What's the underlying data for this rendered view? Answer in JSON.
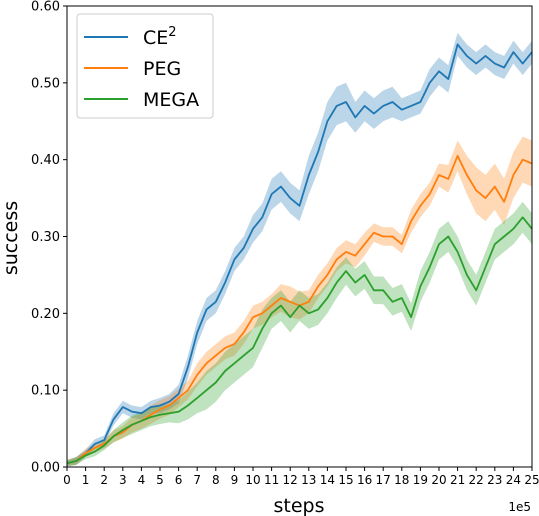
{
  "chart_data": {
    "type": "line",
    "title": "",
    "xlabel": "steps",
    "ylabel": "success",
    "x_offset_label": "1e5",
    "xlim": [
      0,
      25
    ],
    "ylim": [
      0,
      0.6
    ],
    "xticks": [
      0,
      1,
      2,
      3,
      4,
      5,
      6,
      7,
      8,
      9,
      10,
      11,
      12,
      13,
      14,
      15,
      16,
      17,
      18,
      19,
      20,
      21,
      22,
      23,
      24,
      25
    ],
    "xtick_labels": [
      "0",
      "1",
      "2",
      "3",
      "4",
      "5",
      "6",
      "7",
      "8",
      "9",
      "10",
      "11",
      "12",
      "13",
      "14",
      "15",
      "16",
      "17",
      "18",
      "19",
      "20",
      "21",
      "22",
      "23",
      "24",
      "25"
    ],
    "yticks": [
      0,
      0.1,
      0.2,
      0.3,
      0.4,
      0.5,
      0.6
    ],
    "ytick_labels": [
      "0.00",
      "0.10",
      "0.20",
      "0.30",
      "0.40",
      "0.50",
      "0.60"
    ],
    "grid": false,
    "legend_position": "top-left",
    "x": [
      0,
      0.5,
      1,
      1.5,
      2,
      2.5,
      3,
      3.5,
      4,
      4.5,
      5,
      5.5,
      6,
      6.5,
      7,
      7.5,
      8,
      8.5,
      9,
      9.5,
      10,
      10.5,
      11,
      11.5,
      12,
      12.5,
      13,
      13.5,
      14,
      14.5,
      15,
      15.5,
      16,
      16.5,
      17,
      17.5,
      18,
      18.5,
      19,
      19.5,
      20,
      20.5,
      21,
      21.5,
      22,
      22.5,
      23,
      23.5,
      24,
      24.5,
      25
    ],
    "series": [
      {
        "name": "CE",
        "name_superscript": "2",
        "color": "#1f77b4",
        "values": [
          0.005,
          0.008,
          0.018,
          0.03,
          0.035,
          0.062,
          0.078,
          0.072,
          0.07,
          0.078,
          0.08,
          0.085,
          0.095,
          0.13,
          0.175,
          0.205,
          0.215,
          0.24,
          0.27,
          0.285,
          0.31,
          0.325,
          0.355,
          0.365,
          0.35,
          0.34,
          0.38,
          0.41,
          0.45,
          0.47,
          0.475,
          0.455,
          0.47,
          0.46,
          0.47,
          0.475,
          0.465,
          0.47,
          0.475,
          0.5,
          0.515,
          0.505,
          0.55,
          0.535,
          0.525,
          0.535,
          0.525,
          0.52,
          0.54,
          0.525,
          0.54
        ],
        "band": [
          0.004,
          0.005,
          0.005,
          0.006,
          0.006,
          0.008,
          0.008,
          0.008,
          0.008,
          0.008,
          0.01,
          0.01,
          0.012,
          0.015,
          0.015,
          0.015,
          0.015,
          0.015,
          0.015,
          0.015,
          0.018,
          0.018,
          0.02,
          0.02,
          0.02,
          0.02,
          0.025,
          0.025,
          0.025,
          0.025,
          0.025,
          0.02,
          0.02,
          0.02,
          0.02,
          0.02,
          0.015,
          0.015,
          0.015,
          0.018,
          0.018,
          0.018,
          0.015,
          0.015,
          0.015,
          0.015,
          0.015,
          0.015,
          0.015,
          0.015,
          0.015
        ]
      },
      {
        "name": "PEG",
        "color": "#ff7f0e",
        "values": [
          0.005,
          0.008,
          0.018,
          0.025,
          0.03,
          0.04,
          0.045,
          0.055,
          0.06,
          0.068,
          0.075,
          0.08,
          0.09,
          0.1,
          0.12,
          0.135,
          0.145,
          0.155,
          0.16,
          0.175,
          0.195,
          0.2,
          0.21,
          0.22,
          0.215,
          0.21,
          0.215,
          0.235,
          0.25,
          0.27,
          0.28,
          0.275,
          0.29,
          0.305,
          0.3,
          0.3,
          0.29,
          0.32,
          0.34,
          0.355,
          0.38,
          0.375,
          0.405,
          0.38,
          0.36,
          0.35,
          0.365,
          0.345,
          0.38,
          0.4,
          0.395
        ],
        "band": [
          0.004,
          0.005,
          0.005,
          0.006,
          0.006,
          0.008,
          0.008,
          0.01,
          0.01,
          0.012,
          0.012,
          0.012,
          0.012,
          0.012,
          0.015,
          0.015,
          0.015,
          0.015,
          0.015,
          0.015,
          0.015,
          0.015,
          0.015,
          0.018,
          0.02,
          0.018,
          0.015,
          0.015,
          0.015,
          0.015,
          0.015,
          0.015,
          0.015,
          0.012,
          0.012,
          0.012,
          0.012,
          0.015,
          0.015,
          0.015,
          0.015,
          0.018,
          0.02,
          0.025,
          0.03,
          0.03,
          0.03,
          0.03,
          0.03,
          0.03,
          0.03
        ]
      },
      {
        "name": "MEGA",
        "color": "#2ca02c",
        "values": [
          0.005,
          0.008,
          0.015,
          0.02,
          0.028,
          0.04,
          0.048,
          0.055,
          0.06,
          0.065,
          0.068,
          0.07,
          0.072,
          0.08,
          0.09,
          0.1,
          0.11,
          0.125,
          0.135,
          0.145,
          0.155,
          0.18,
          0.2,
          0.21,
          0.195,
          0.21,
          0.2,
          0.205,
          0.22,
          0.24,
          0.255,
          0.24,
          0.25,
          0.23,
          0.23,
          0.215,
          0.22,
          0.195,
          0.235,
          0.26,
          0.29,
          0.3,
          0.28,
          0.25,
          0.23,
          0.26,
          0.29,
          0.3,
          0.31,
          0.325,
          0.31
        ],
        "band": [
          0.004,
          0.005,
          0.005,
          0.006,
          0.006,
          0.008,
          0.01,
          0.012,
          0.012,
          0.012,
          0.012,
          0.012,
          0.015,
          0.018,
          0.02,
          0.025,
          0.025,
          0.025,
          0.025,
          0.025,
          0.025,
          0.025,
          0.02,
          0.02,
          0.02,
          0.02,
          0.02,
          0.02,
          0.02,
          0.02,
          0.018,
          0.018,
          0.018,
          0.018,
          0.018,
          0.018,
          0.018,
          0.018,
          0.02,
          0.02,
          0.02,
          0.02,
          0.02,
          0.02,
          0.02,
          0.02,
          0.02,
          0.02,
          0.02,
          0.02,
          0.02
        ]
      }
    ]
  }
}
